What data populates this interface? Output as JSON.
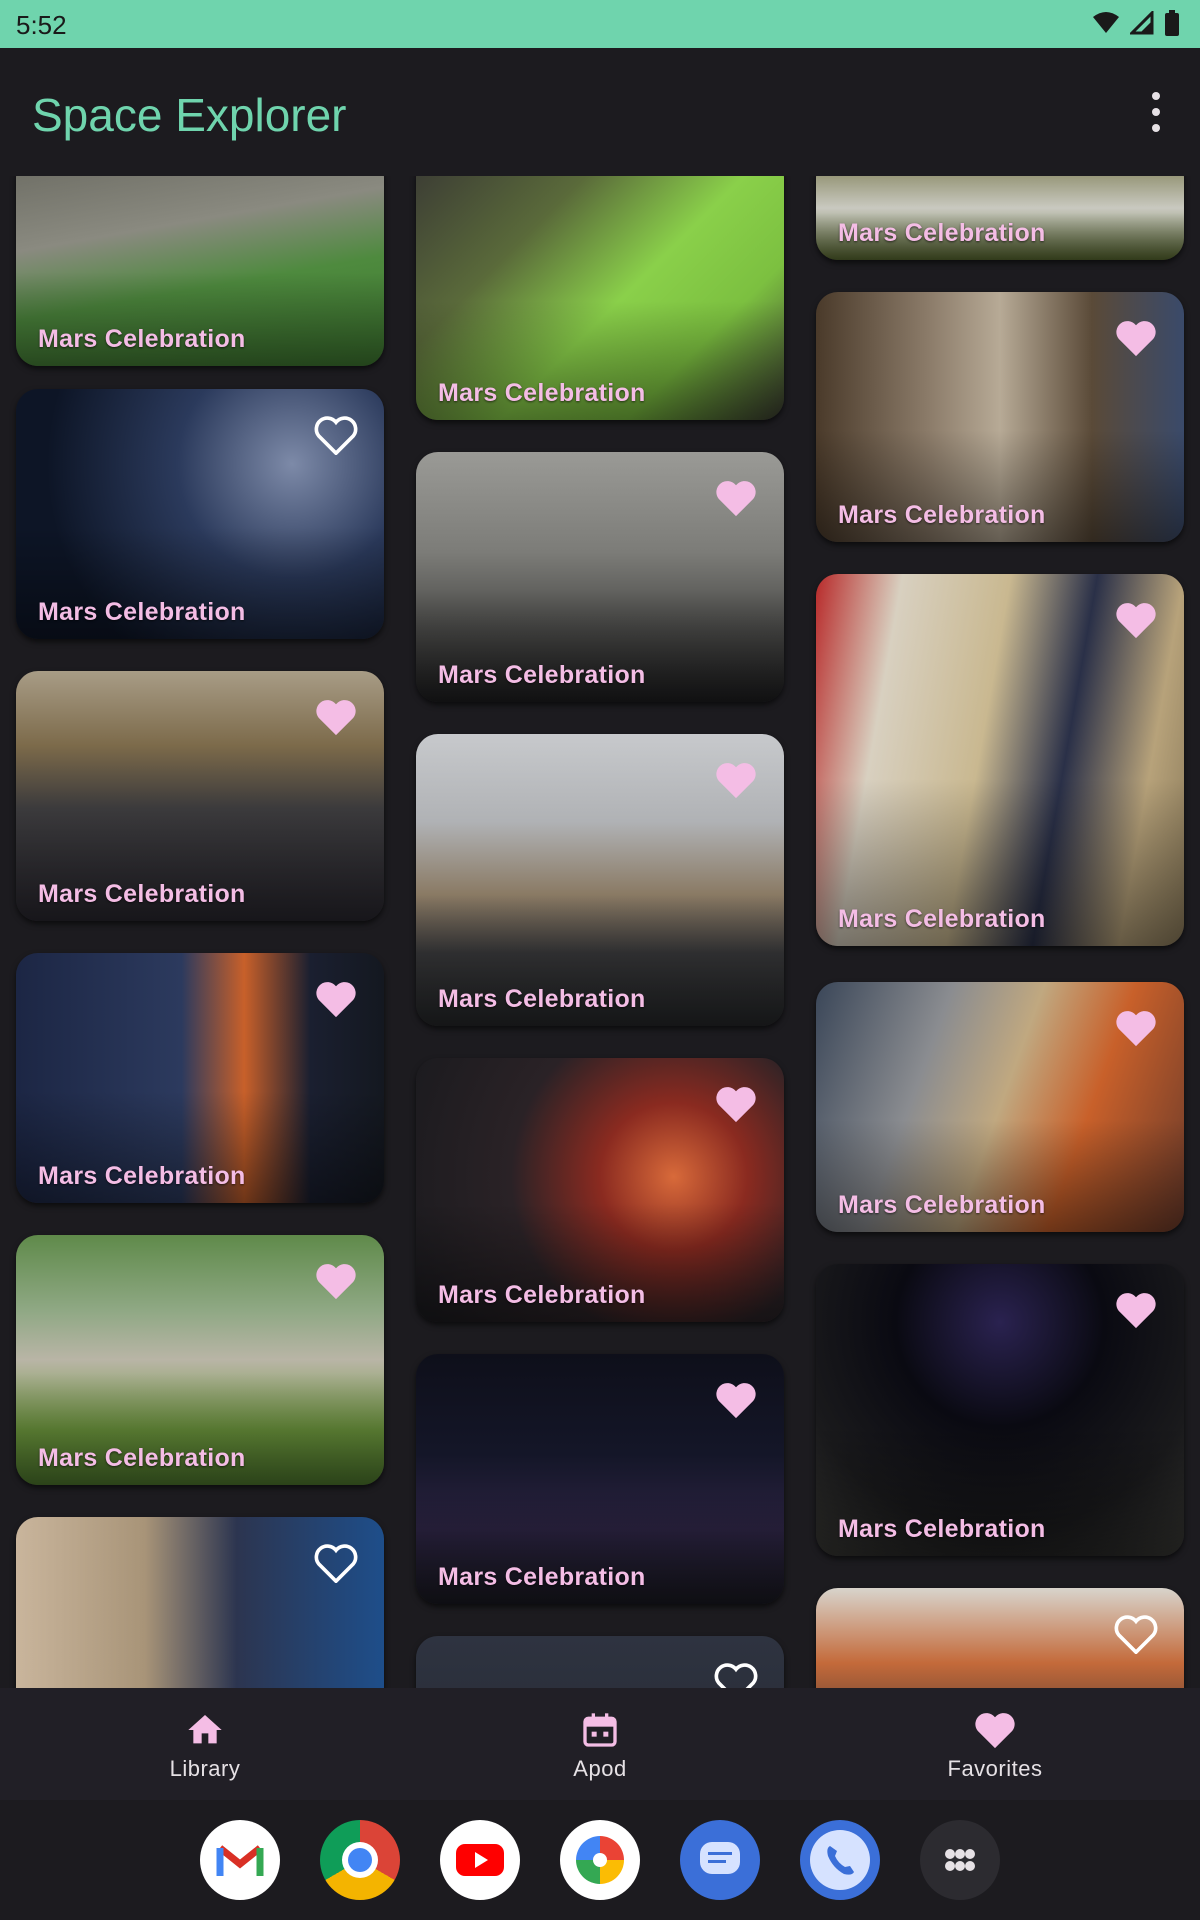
{
  "status": {
    "time": "5:52"
  },
  "app": {
    "title": "Space Explorer",
    "menu_icon": "more-vert-icon"
  },
  "cards": {
    "title": "Mars Celebration",
    "col1": [
      {
        "favorite": false,
        "show_icon": false
      },
      {
        "favorite": false,
        "show_icon": true
      },
      {
        "favorite": true,
        "show_icon": true
      },
      {
        "favorite": true,
        "show_icon": true
      },
      {
        "favorite": true,
        "show_icon": true
      },
      {
        "favorite": false,
        "show_icon": true
      }
    ],
    "col2": [
      {
        "favorite": false,
        "show_icon": false
      },
      {
        "favorite": true,
        "show_icon": true
      },
      {
        "favorite": true,
        "show_icon": true
      },
      {
        "favorite": true,
        "show_icon": true
      },
      {
        "favorite": true,
        "show_icon": true
      },
      {
        "favorite": false,
        "show_icon": true
      }
    ],
    "col3": [
      {
        "favorite": false,
        "show_icon": false
      },
      {
        "favorite": true,
        "show_icon": true
      },
      {
        "favorite": true,
        "show_icon": true
      },
      {
        "favorite": true,
        "show_icon": true
      },
      {
        "favorite": true,
        "show_icon": true
      },
      {
        "favorite": false,
        "show_icon": true
      }
    ]
  },
  "colors": {
    "accent": "#6fd4ad",
    "pink": "#f4bde5",
    "background": "#1c1b1f"
  },
  "nav": {
    "library": {
      "label": "Library",
      "icon": "home-icon"
    },
    "apod": {
      "label": "Apod",
      "icon": "calendar-icon"
    },
    "favorites": {
      "label": "Favorites",
      "icon": "heart-icon"
    }
  },
  "dock": [
    "gmail-icon",
    "chrome-icon",
    "youtube-icon",
    "photos-icon",
    "messages-icon",
    "phone-icon",
    "app-drawer-icon"
  ]
}
